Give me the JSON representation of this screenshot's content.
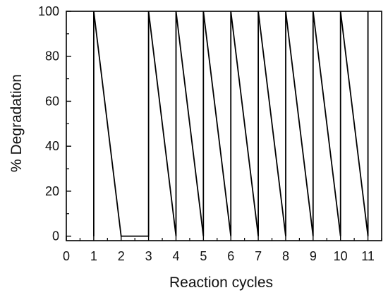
{
  "chart_data": {
    "type": "line",
    "title": "",
    "xlabel": "Reaction cycles",
    "ylabel": "% Degradation",
    "xlim": [
      0,
      11.5
    ],
    "ylim": [
      -2,
      100
    ],
    "x_ticks": [
      0,
      1,
      2,
      3,
      4,
      5,
      6,
      7,
      8,
      9,
      10,
      11
    ],
    "y_ticks": [
      0,
      20,
      40,
      60,
      80,
      100
    ],
    "grid": false,
    "legend": "none",
    "line_color": "#000000",
    "series": [
      {
        "x": [
          1,
          1,
          2,
          3,
          3,
          4,
          4,
          5,
          5,
          6,
          6,
          7,
          7,
          8,
          8,
          9,
          9,
          10,
          10,
          11,
          11
        ],
        "y": [
          0,
          100,
          0,
          0,
          100,
          0,
          100,
          0,
          100,
          0,
          100,
          0,
          100,
          0,
          100,
          0,
          100,
          0,
          100,
          0,
          100
        ]
      }
    ]
  }
}
